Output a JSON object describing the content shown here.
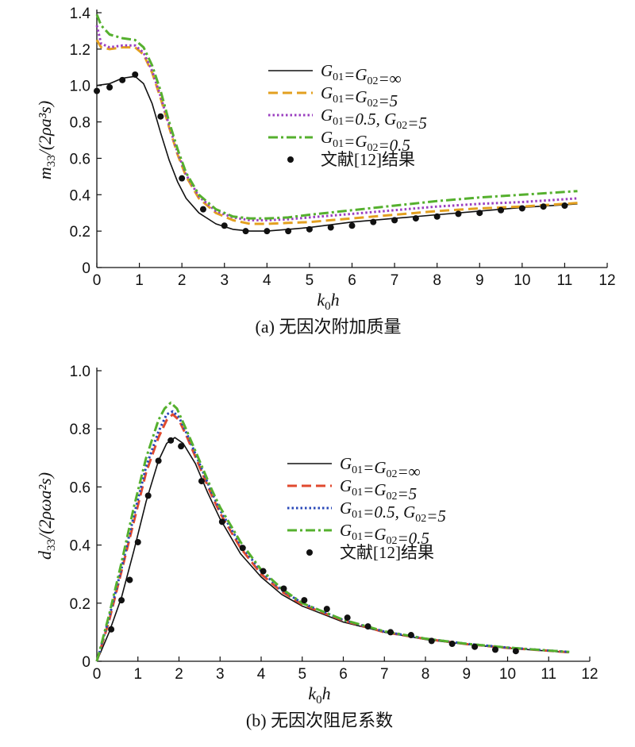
{
  "chart_data": [
    {
      "type": "line",
      "caption": "(a) 无因次附加质量",
      "xlabel": "k0h",
      "ylabel": "m33/(2ρa³s)",
      "xlim": [
        0,
        12
      ],
      "ylim": [
        0,
        1.4
      ],
      "xticks": [
        "0",
        "1",
        "2",
        "3",
        "4",
        "5",
        "6",
        "7",
        "8",
        "9",
        "10",
        "11",
        "12"
      ],
      "yticks": [
        "0",
        "0.2",
        "0.4",
        "0.6",
        "0.8",
        "1.0",
        "1.2",
        "1.4"
      ],
      "legend_position": "upper-right",
      "series": [
        {
          "name": "G01=G02=∞",
          "color": "#111111",
          "style": "solid",
          "x": [
            0,
            0.3,
            0.6,
            0.9,
            1.1,
            1.3,
            1.5,
            1.7,
            1.9,
            2.1,
            2.4,
            2.8,
            3.2,
            3.6,
            4.0,
            4.5,
            5,
            6,
            7,
            8,
            9,
            10,
            11,
            11.3
          ],
          "y": [
            1.0,
            1.01,
            1.04,
            1.05,
            1.01,
            0.9,
            0.74,
            0.59,
            0.47,
            0.38,
            0.3,
            0.24,
            0.21,
            0.2,
            0.2,
            0.21,
            0.22,
            0.25,
            0.27,
            0.29,
            0.31,
            0.33,
            0.345,
            0.35
          ]
        },
        {
          "name": "G01=G02=5",
          "color": "#e3a020",
          "style": "dash",
          "x": [
            0,
            0.1,
            0.3,
            0.6,
            0.9,
            1.1,
            1.3,
            1.5,
            1.7,
            1.9,
            2.1,
            2.4,
            2.8,
            3.2,
            3.6,
            4.0,
            4.5,
            5,
            6,
            7,
            8,
            9,
            10,
            11,
            11.3
          ],
          "y": [
            1.25,
            1.21,
            1.2,
            1.21,
            1.21,
            1.17,
            1.07,
            0.93,
            0.77,
            0.62,
            0.5,
            0.38,
            0.3,
            0.26,
            0.24,
            0.24,
            0.245,
            0.25,
            0.27,
            0.29,
            0.31,
            0.325,
            0.335,
            0.35,
            0.355
          ]
        },
        {
          "name": "G01=0.5, G02=5",
          "color": "#9b3fc0",
          "style": "dot",
          "x": [
            0,
            0.1,
            0.3,
            0.6,
            0.9,
            1.1,
            1.3,
            1.5,
            1.7,
            1.9,
            2.1,
            2.4,
            2.8,
            3.2,
            3.6,
            4.0,
            4.5,
            5,
            6,
            7,
            8,
            9,
            10,
            11,
            11.3
          ],
          "y": [
            1.33,
            1.23,
            1.21,
            1.22,
            1.22,
            1.18,
            1.08,
            0.94,
            0.78,
            0.63,
            0.51,
            0.39,
            0.31,
            0.275,
            0.26,
            0.26,
            0.265,
            0.275,
            0.295,
            0.315,
            0.335,
            0.35,
            0.36,
            0.375,
            0.38
          ]
        },
        {
          "name": "G01=G02=0.5",
          "color": "#55b02e",
          "style": "dashdot",
          "x": [
            0,
            0.1,
            0.3,
            0.6,
            0.9,
            1.1,
            1.3,
            1.5,
            1.7,
            1.9,
            2.1,
            2.4,
            2.8,
            3.2,
            3.6,
            4.0,
            4.5,
            5,
            6,
            7,
            8,
            9,
            10,
            11,
            11.3
          ],
          "y": [
            1.39,
            1.33,
            1.28,
            1.26,
            1.25,
            1.21,
            1.11,
            0.97,
            0.8,
            0.65,
            0.52,
            0.4,
            0.32,
            0.28,
            0.27,
            0.27,
            0.275,
            0.29,
            0.315,
            0.34,
            0.365,
            0.385,
            0.4,
            0.415,
            0.42
          ]
        },
        {
          "name": "文献[12]结果",
          "color": "#111111",
          "style": "markers",
          "x": [
            0,
            0.3,
            0.6,
            0.9,
            1.5,
            2.0,
            2.5,
            3.0,
            3.5,
            4.0,
            4.5,
            5.0,
            5.5,
            6.0,
            6.5,
            7.0,
            7.5,
            8.0,
            8.5,
            9.0,
            9.5,
            10.0,
            10.5,
            11.0
          ],
          "y": [
            0.97,
            0.99,
            1.03,
            1.06,
            0.83,
            0.49,
            0.32,
            0.23,
            0.2,
            0.2,
            0.2,
            0.21,
            0.22,
            0.23,
            0.25,
            0.26,
            0.27,
            0.28,
            0.295,
            0.3,
            0.315,
            0.325,
            0.335,
            0.34
          ]
        }
      ]
    },
    {
      "type": "line",
      "caption": "(b) 无因次阻尼系数",
      "xlabel": "k0h",
      "ylabel": "d33/(2ρωa²s)",
      "xlim": [
        0,
        12
      ],
      "ylim": [
        0,
        1.0
      ],
      "xticks": [
        "0",
        "1",
        "2",
        "3",
        "4",
        "5",
        "6",
        "7",
        "8",
        "9",
        "10",
        "11",
        "12"
      ],
      "yticks": [
        "0",
        "0.2",
        "0.4",
        "0.6",
        "0.8",
        "1.0"
      ],
      "legend_position": "center-right",
      "series": [
        {
          "name": "G01=G02=∞",
          "color": "#111111",
          "style": "solid",
          "x": [
            0,
            0.3,
            0.6,
            0.9,
            1.2,
            1.5,
            1.7,
            1.9,
            2.1,
            2.4,
            2.7,
            3.0,
            3.5,
            4.0,
            4.5,
            5.0,
            6.0,
            7.0,
            8.0,
            9.0,
            10.0,
            11.0,
            11.5
          ],
          "y": [
            0,
            0.1,
            0.22,
            0.38,
            0.55,
            0.69,
            0.75,
            0.77,
            0.75,
            0.68,
            0.58,
            0.49,
            0.37,
            0.29,
            0.23,
            0.19,
            0.135,
            0.1,
            0.075,
            0.058,
            0.045,
            0.035,
            0.03
          ]
        },
        {
          "name": "G01=G02=5",
          "color": "#e04a2f",
          "style": "dash",
          "x": [
            0,
            0.3,
            0.6,
            0.9,
            1.2,
            1.5,
            1.7,
            1.85,
            2.0,
            2.2,
            2.5,
            2.8,
            3.0,
            3.5,
            4.0,
            4.5,
            5.0,
            6.0,
            7.0,
            8.0,
            9.0,
            10.0,
            11.0,
            11.5
          ],
          "y": [
            0,
            0.14,
            0.31,
            0.48,
            0.65,
            0.77,
            0.83,
            0.85,
            0.83,
            0.77,
            0.67,
            0.57,
            0.51,
            0.39,
            0.3,
            0.24,
            0.195,
            0.14,
            0.1,
            0.077,
            0.059,
            0.046,
            0.036,
            0.031
          ]
        },
        {
          "name": "G01=0.5, G02=5",
          "color": "#2a48b8",
          "style": "dot",
          "x": [
            0,
            0.3,
            0.6,
            0.9,
            1.2,
            1.5,
            1.7,
            1.85,
            2.0,
            2.2,
            2.5,
            2.8,
            3.0,
            3.5,
            4.0,
            4.5,
            5.0,
            6.0,
            7.0,
            8.0,
            9.0,
            10.0,
            11.0,
            11.5
          ],
          "y": [
            0,
            0.15,
            0.32,
            0.5,
            0.67,
            0.79,
            0.85,
            0.86,
            0.84,
            0.78,
            0.68,
            0.58,
            0.52,
            0.4,
            0.31,
            0.245,
            0.2,
            0.142,
            0.102,
            0.078,
            0.06,
            0.047,
            0.037,
            0.032
          ]
        },
        {
          "name": "G01=G02=0.5",
          "color": "#55b02e",
          "style": "dashdot",
          "x": [
            0,
            0.3,
            0.6,
            0.9,
            1.2,
            1.5,
            1.65,
            1.8,
            1.95,
            2.2,
            2.5,
            2.8,
            3.0,
            3.5,
            4.0,
            4.5,
            5.0,
            6.0,
            7.0,
            8.0,
            9.0,
            10.0,
            11.0,
            11.5
          ],
          "y": [
            0,
            0.16,
            0.34,
            0.53,
            0.7,
            0.83,
            0.87,
            0.89,
            0.87,
            0.79,
            0.69,
            0.59,
            0.53,
            0.41,
            0.315,
            0.25,
            0.2,
            0.143,
            0.103,
            0.078,
            0.06,
            0.047,
            0.037,
            0.032
          ]
        },
        {
          "name": "文献[12]结果",
          "color": "#111111",
          "style": "markers",
          "x": [
            0.35,
            0.6,
            0.8,
            1.0,
            1.25,
            1.5,
            1.8,
            2.05,
            2.55,
            3.05,
            3.55,
            4.05,
            4.55,
            5.05,
            5.6,
            6.1,
            6.6,
            7.15,
            7.65,
            8.15,
            8.65,
            9.2,
            9.7,
            10.2
          ],
          "y": [
            0.11,
            0.21,
            0.28,
            0.41,
            0.57,
            0.69,
            0.76,
            0.74,
            0.62,
            0.48,
            0.39,
            0.31,
            0.25,
            0.21,
            0.18,
            0.15,
            0.12,
            0.1,
            0.09,
            0.07,
            0.06,
            0.05,
            0.04,
            0.035
          ]
        }
      ]
    }
  ]
}
